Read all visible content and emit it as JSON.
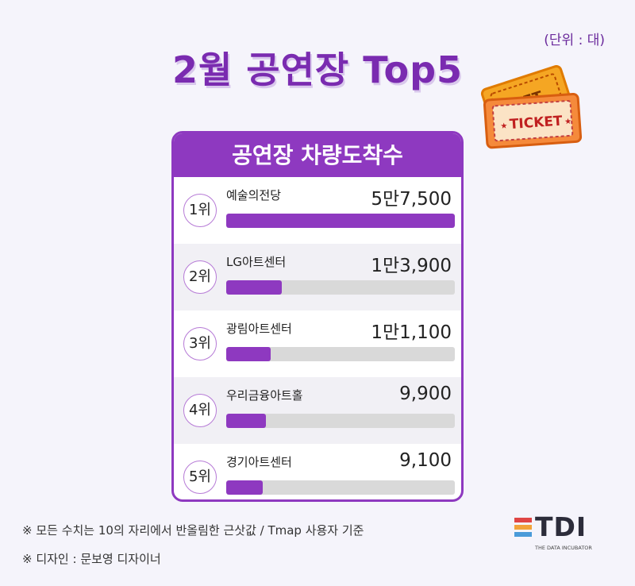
{
  "unit_label": "(단위 : 대)",
  "title": "2월 공연장  Top5",
  "ticket_text": "TICKET",
  "ticket_back_text": "KET",
  "panel_title": "공연장 차량도착수",
  "chart_data": {
    "type": "bar",
    "title": "공연장 차량도착수",
    "categories": [
      "예술의전당",
      "LG아트센터",
      "광림아트센터",
      "우리금융아트홀",
      "경기아트센터"
    ],
    "ranks": [
      "1위",
      "2위",
      "3위",
      "4위",
      "5위"
    ],
    "values": [
      57500,
      13900,
      11100,
      9900,
      9100
    ],
    "value_labels": [
      "5만7,500",
      "1만3,900",
      "1만1,100",
      "9,900",
      "9,100"
    ],
    "xlabel": "",
    "ylabel": "",
    "ylim": [
      0,
      57500
    ],
    "colors": {
      "bar": "#8e39c0",
      "track": "#d9d9d9"
    }
  },
  "notes": [
    "※ 모든 수치는 10의 자리에서 반올림한 근삿값 / Tmap 사용자 기준",
    "※ 디자인 : 문보영 디자이너"
  ],
  "logo": {
    "text": "TDI",
    "subtitle": "THE DATA INCUBATOR",
    "colors": [
      "#e04545",
      "#f2a33a",
      "#4a9bd9"
    ]
  }
}
